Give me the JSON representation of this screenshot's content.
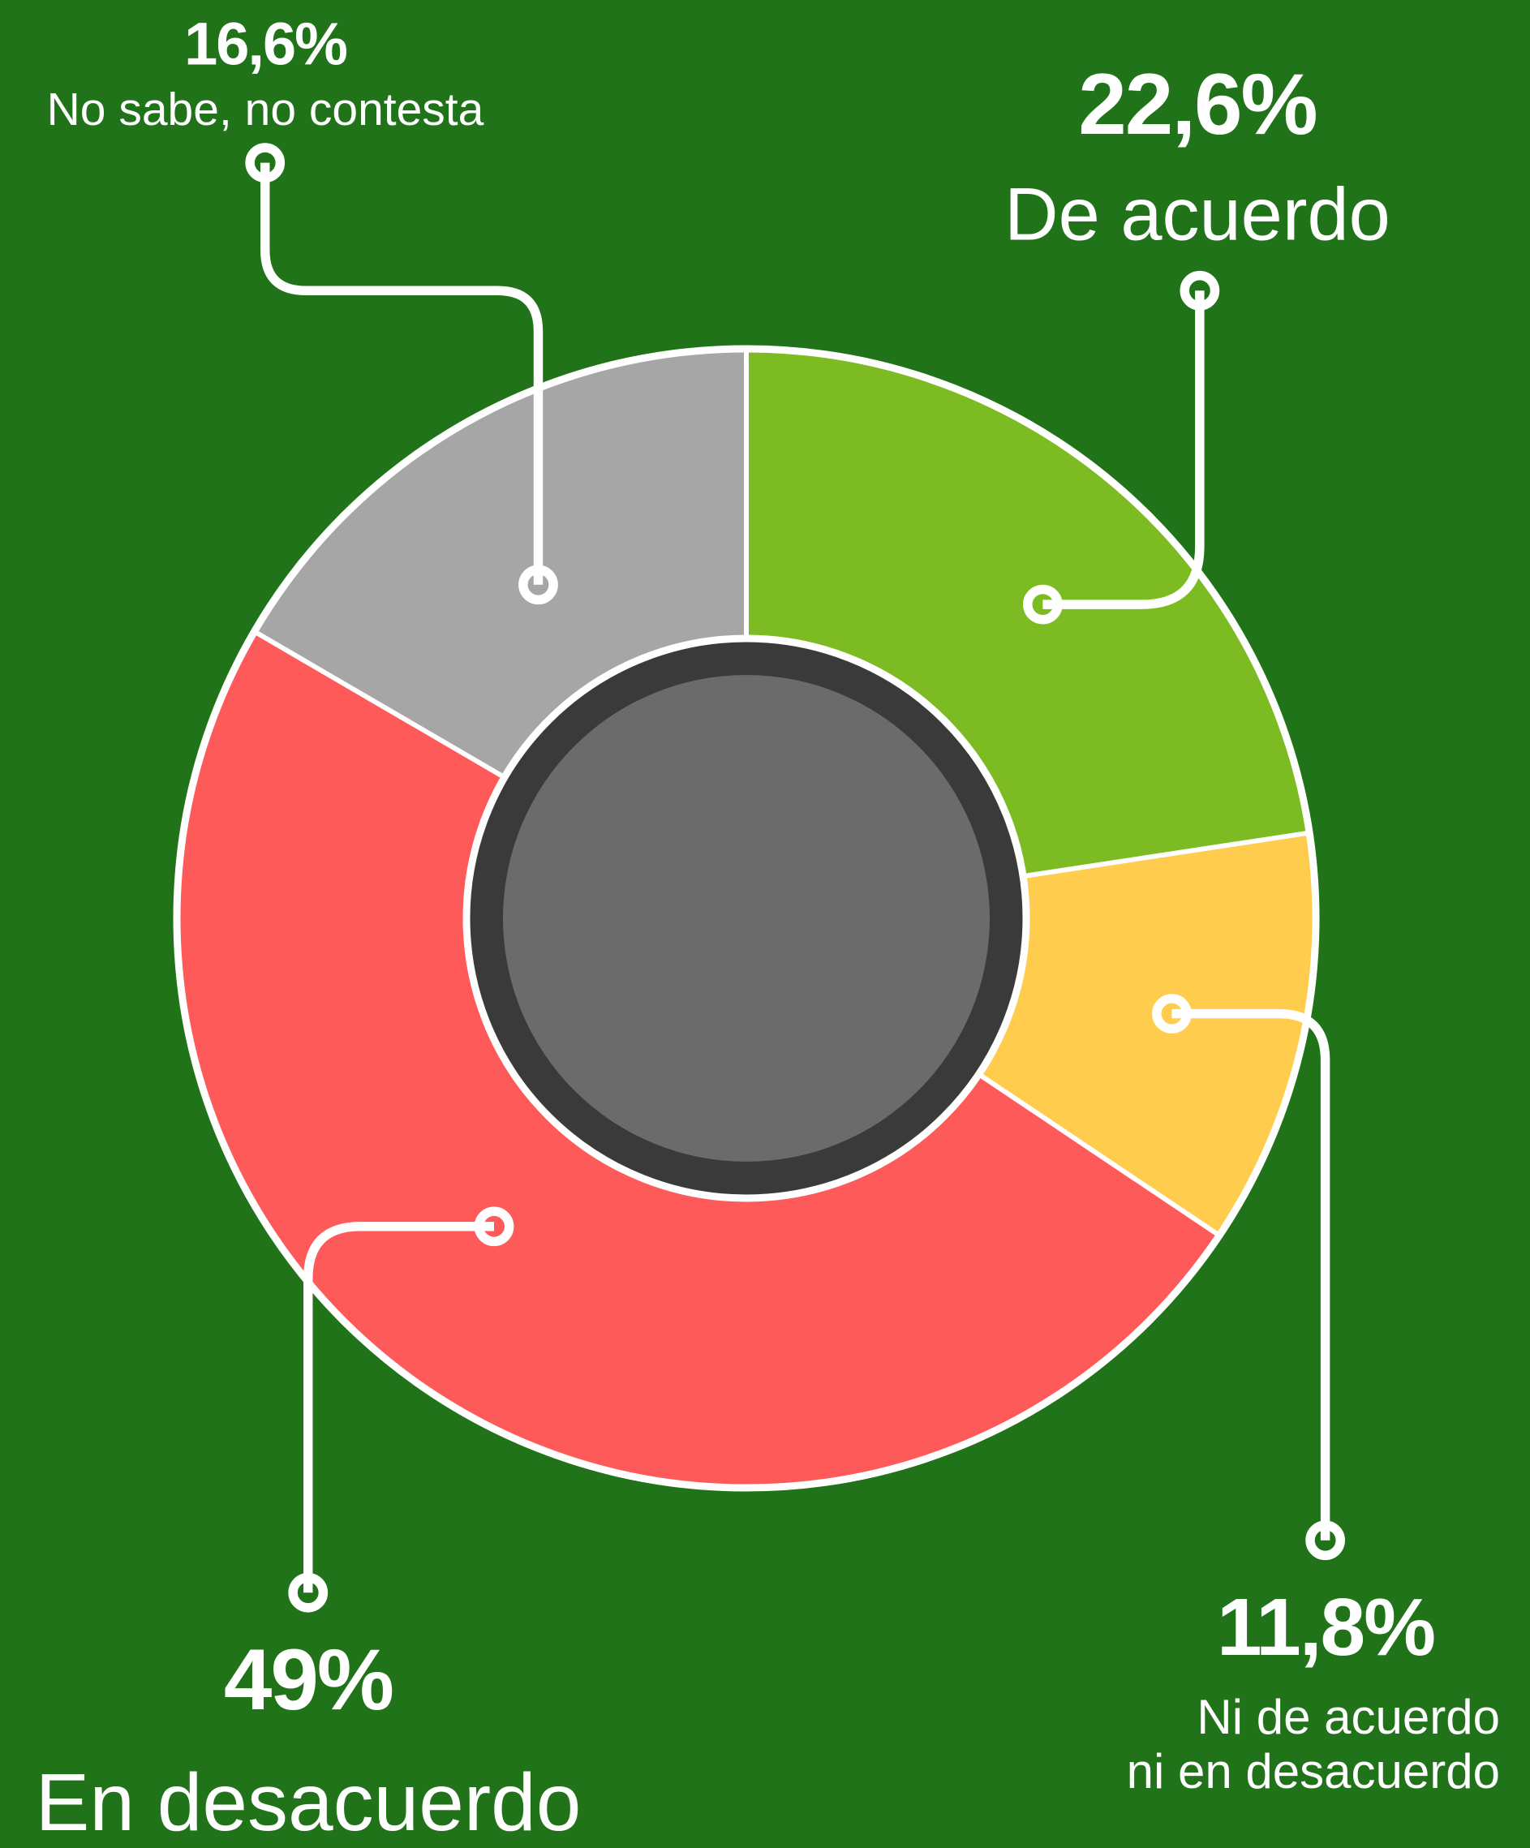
{
  "chart_data": {
    "type": "pie",
    "donut": true,
    "categories": [
      "De acuerdo",
      "Ni de acuerdo\nni en desacuerdo",
      "En desacuerdo",
      "No sabe, no contesta"
    ],
    "values": [
      22.6,
      11.8,
      49,
      16.6
    ],
    "value_labels": [
      "22,6%",
      "11,8%",
      "49%",
      "16,6%"
    ],
    "colors": [
      "#7dbb23",
      "#ffcc4d",
      "#ff5a5a",
      "#a6a6a6"
    ]
  }
}
